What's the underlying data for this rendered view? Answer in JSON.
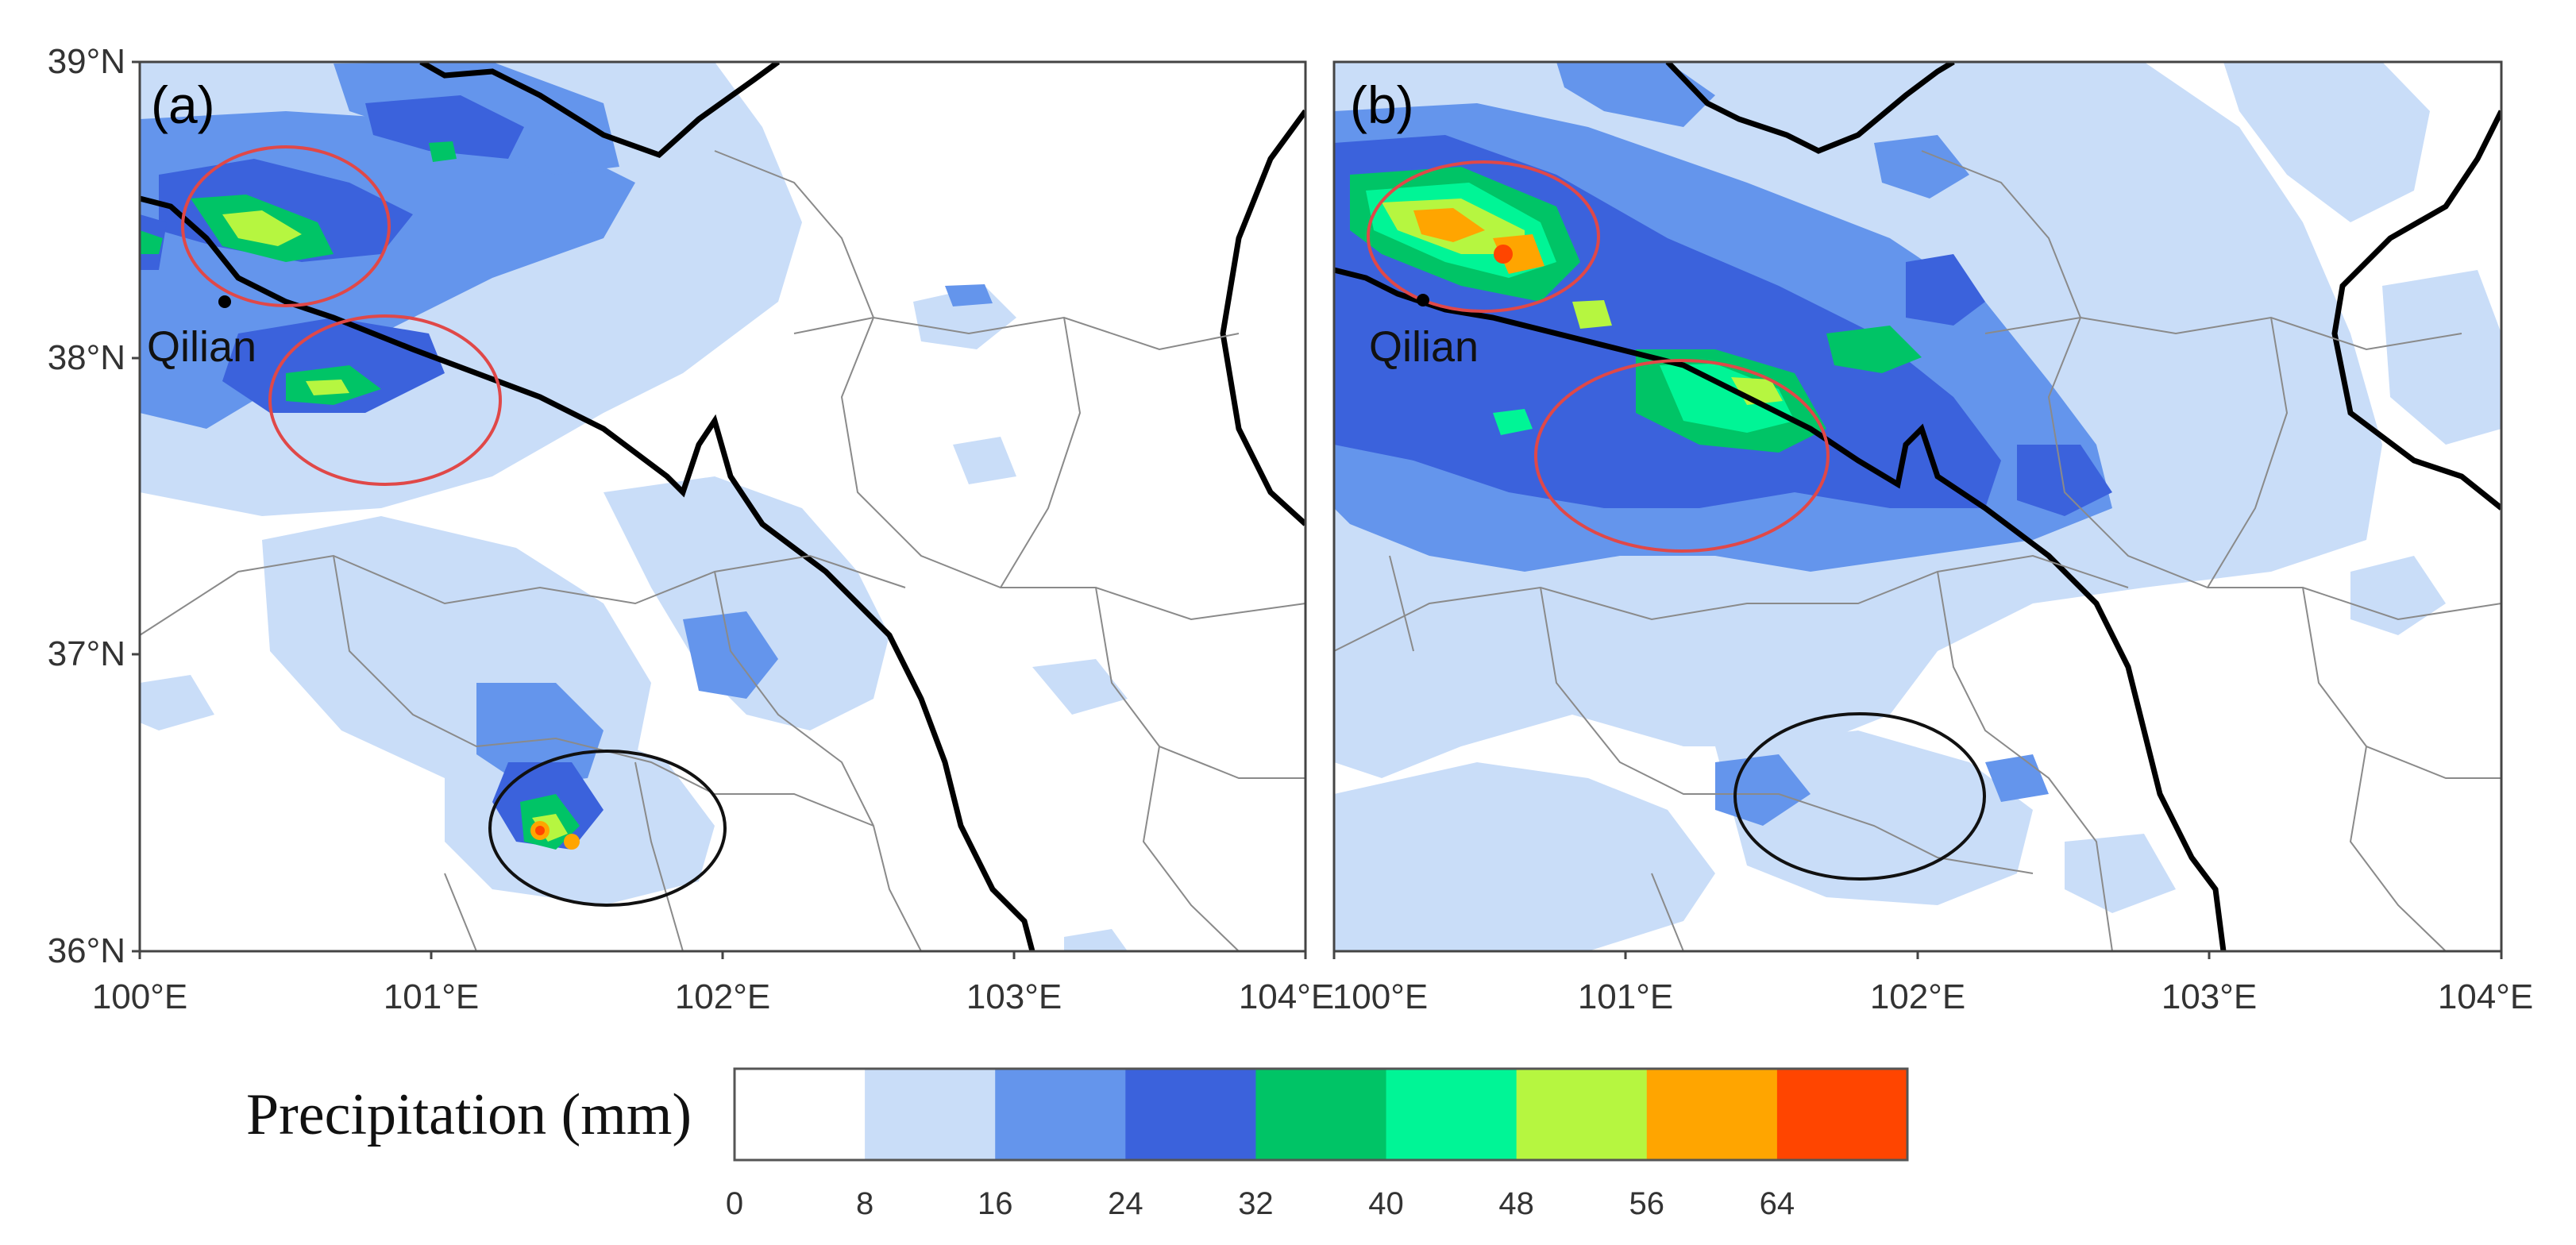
{
  "figure": {
    "panels": [
      {
        "id": "a",
        "label": "(a)",
        "place_label": "Qilian"
      },
      {
        "id": "b",
        "label": "(b)",
        "place_label": "Qilian"
      }
    ],
    "lat_labels": [
      "39°N",
      "38°N",
      "37°N",
      "36°N"
    ],
    "lon_labels": [
      "100°E",
      "101°E",
      "102°E",
      "103°E",
      "104°E"
    ],
    "extent": {
      "lon": [
        100,
        104
      ],
      "lat": [
        36,
        39
      ]
    }
  },
  "colorbar": {
    "title": "Precipitation (mm)",
    "ticks": [
      "0",
      "8",
      "16",
      "24",
      "32",
      "40",
      "48",
      "56",
      "64"
    ],
    "bins": [
      {
        "from": 0,
        "to": 8,
        "color": "#ffffff"
      },
      {
        "from": 8,
        "to": 16,
        "color": "#c9ddf8"
      },
      {
        "from": 16,
        "to": 24,
        "color": "#6495ec"
      },
      {
        "from": 24,
        "to": 32,
        "color": "#3b62dc"
      },
      {
        "from": 32,
        "to": 40,
        "color": "#00c466"
      },
      {
        "from": 40,
        "to": 48,
        "color": "#00f596"
      },
      {
        "from": 48,
        "to": 56,
        "color": "#b6f640"
      },
      {
        "from": 56,
        "to": 64,
        "color": "#ffa500"
      },
      {
        "from": 64,
        "to": 72,
        "color": "#ff4500"
      }
    ]
  },
  "annotation_colors": {
    "red_circle": "#e04848",
    "black_circle": "#111111"
  }
}
